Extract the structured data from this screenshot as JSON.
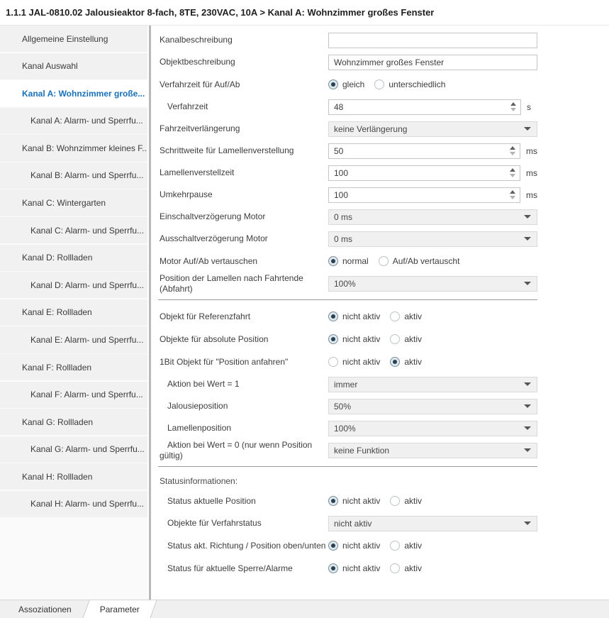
{
  "header": {
    "breadcrumb": "1.1.1 JAL-0810.02 Jalousieaktor 8-fach, 8TE, 230VAC, 10A > Kanal A: Wohnzimmer großes Fenster"
  },
  "sidebar": {
    "items": [
      {
        "label": "Allgemeine Einstellung",
        "level": 0,
        "selected": false
      },
      {
        "label": "Kanal Auswahl",
        "level": 0,
        "selected": false
      },
      {
        "label": "Kanal A: Wohnzimmer große...",
        "level": 0,
        "selected": true
      },
      {
        "label": "Kanal A: Alarm- und Sperrfu...",
        "level": 1,
        "selected": false
      },
      {
        "label": "Kanal B: Wohnzimmer kleines F...",
        "level": 0,
        "selected": false
      },
      {
        "label": "Kanal B: Alarm- und Sperrfu...",
        "level": 1,
        "selected": false
      },
      {
        "label": "Kanal C: Wintergarten",
        "level": 0,
        "selected": false
      },
      {
        "label": "Kanal C: Alarm- und Sperrfu...",
        "level": 1,
        "selected": false
      },
      {
        "label": "Kanal D: Rollladen",
        "level": 0,
        "selected": false
      },
      {
        "label": "Kanal D: Alarm- und Sperrfu...",
        "level": 1,
        "selected": false
      },
      {
        "label": "Kanal E: Rollladen",
        "level": 0,
        "selected": false
      },
      {
        "label": "Kanal E: Alarm- und Sperrfu...",
        "level": 1,
        "selected": false
      },
      {
        "label": "Kanal F: Rollladen",
        "level": 0,
        "selected": false
      },
      {
        "label": "Kanal F: Alarm- und Sperrfu...",
        "level": 1,
        "selected": false
      },
      {
        "label": "Kanal G: Rollladen",
        "level": 0,
        "selected": false
      },
      {
        "label": "Kanal G: Alarm- und Sperrfu...",
        "level": 1,
        "selected": false
      },
      {
        "label": "Kanal H: Rollladen",
        "level": 0,
        "selected": false
      },
      {
        "label": "Kanal H: Alarm- und Sperrfu...",
        "level": 1,
        "selected": false
      }
    ]
  },
  "panel": {
    "rows": [
      {
        "type": "text",
        "label": "Kanalbeschreibung",
        "value": ""
      },
      {
        "type": "text",
        "label": "Objektbeschreibung",
        "value": "Wohnzimmer großes Fenster"
      },
      {
        "type": "radio",
        "label": "Verfahrzeit für Auf/Ab",
        "options": [
          "gleich",
          "unterschiedlich"
        ],
        "selected": 0
      },
      {
        "type": "spinner",
        "label": "Verfahrzeit",
        "value": "48",
        "unit": "s",
        "indent": 1
      },
      {
        "type": "select",
        "label": "Fahrzeitverlängerung",
        "value": "keine Verlängerung"
      },
      {
        "type": "spinner",
        "label": "Schrittweite für Lamellenverstellung",
        "value": "50",
        "unit": "ms"
      },
      {
        "type": "spinner",
        "label": "Lamellenverstellzeit",
        "value": "100",
        "unit": "ms"
      },
      {
        "type": "spinner",
        "label": "Umkehrpause",
        "value": "100",
        "unit": "ms"
      },
      {
        "type": "select",
        "label": "Einschaltverzögerung Motor",
        "value": "0 ms"
      },
      {
        "type": "select",
        "label": "Ausschaltverzögerung Motor",
        "value": "0 ms"
      },
      {
        "type": "radio",
        "label": "Motor Auf/Ab vertauschen",
        "options": [
          "normal",
          "Auf/Ab vertauscht"
        ],
        "selected": 0
      },
      {
        "type": "select",
        "label": "Position der Lamellen nach Fahrtende (Abfahrt)",
        "value": "100%"
      },
      {
        "type": "separator"
      },
      {
        "type": "radio",
        "label": "Objekt für Referenzfahrt",
        "options": [
          "nicht aktiv",
          "aktiv"
        ],
        "selected": 0
      },
      {
        "type": "radio",
        "label": "Objekte für absolute Position",
        "options": [
          "nicht aktiv",
          "aktiv"
        ],
        "selected": 0
      },
      {
        "type": "radio",
        "label": "1Bit Objekt für \"Position anfahren\"",
        "options": [
          "nicht aktiv",
          "aktiv"
        ],
        "selected": 1
      },
      {
        "type": "select",
        "label": "Aktion bei Wert = 1",
        "value": "immer",
        "indent": 1
      },
      {
        "type": "select",
        "label": "Jalousieposition",
        "value": "50%",
        "indent": 1
      },
      {
        "type": "select",
        "label": "Lamellenposition",
        "value": "100%",
        "indent": 1
      },
      {
        "type": "select",
        "label": "Aktion bei Wert = 0 (nur wenn Position gültig)",
        "value": "keine Funktion",
        "indent": 1
      },
      {
        "type": "separator"
      },
      {
        "type": "heading",
        "label": "Statusinformationen:"
      },
      {
        "type": "radio",
        "label": "Status aktuelle Position",
        "options": [
          "nicht aktiv",
          "aktiv"
        ],
        "selected": 0,
        "indent": 1
      },
      {
        "type": "select",
        "label": "Objekte für Verfahrstatus",
        "value": "nicht aktiv",
        "indent": 1
      },
      {
        "type": "radio",
        "label": "Status akt. Richtung / Position oben/unten",
        "options": [
          "nicht aktiv",
          "aktiv"
        ],
        "selected": 0,
        "indent": 1,
        "nowrap": true
      },
      {
        "type": "radio",
        "label": "Status für aktuelle Sperre/Alarme",
        "options": [
          "nicht aktiv",
          "aktiv"
        ],
        "selected": 0,
        "indent": 1
      }
    ]
  },
  "tabs": {
    "items": [
      {
        "label": "Assoziationen",
        "active": false
      },
      {
        "label": "Parameter",
        "active": true
      }
    ]
  },
  "colors": {
    "accent_blue": "#1a70b8",
    "radio_dot": "#2b4050",
    "radio_fill": "#dce7ee",
    "control_bg": "#f0f0f0",
    "sidebar_item_bg": "#f1f1f1",
    "separator_gray": "#9a9a9a"
  }
}
